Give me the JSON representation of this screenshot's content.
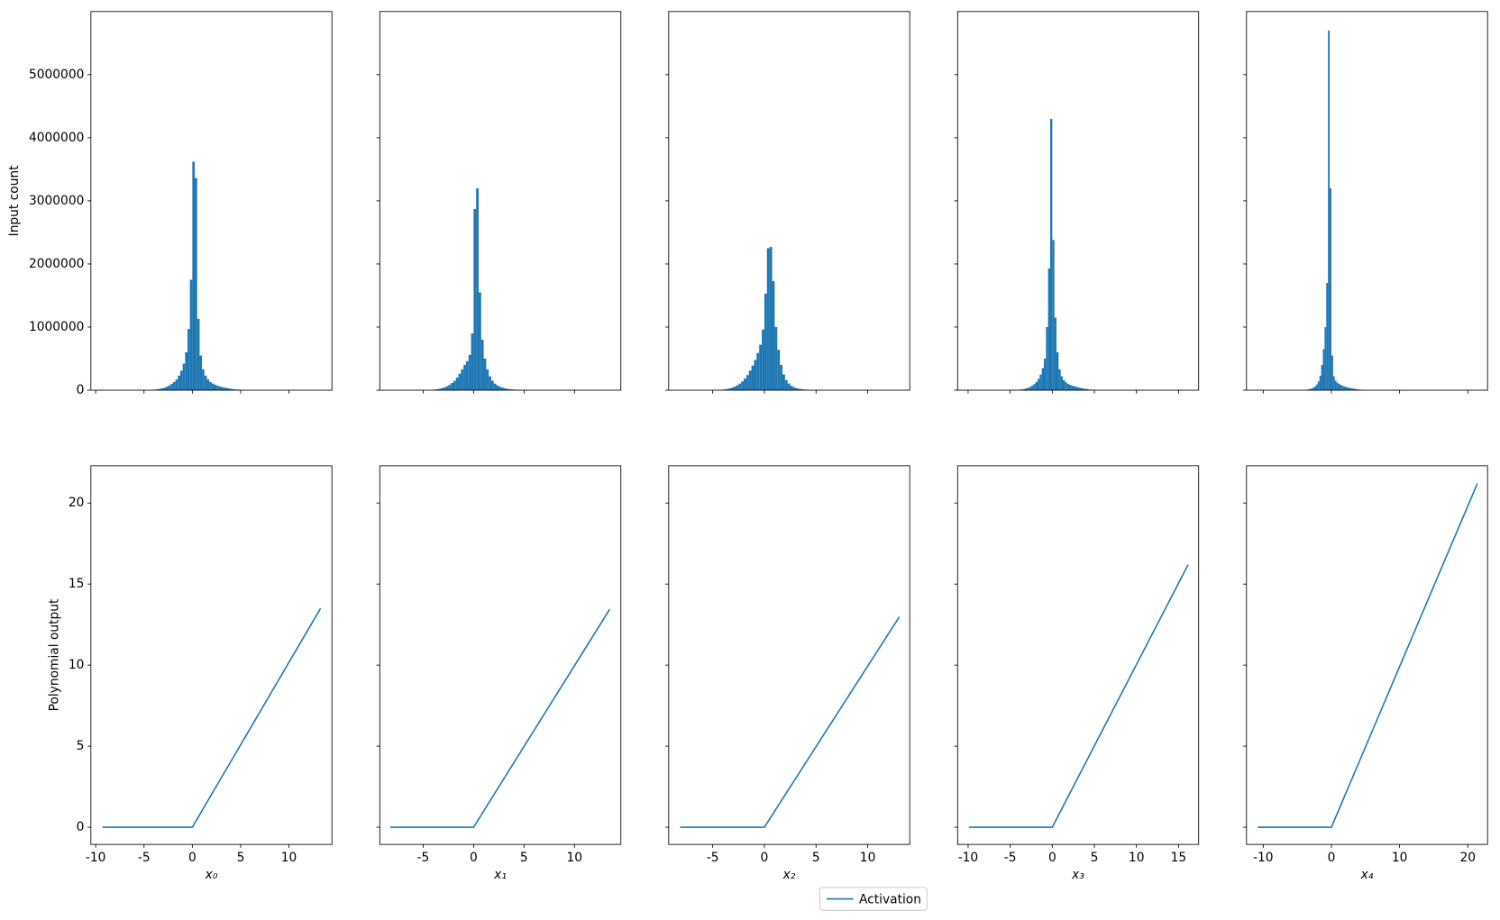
{
  "chart_data": [
    {
      "type": "histogram",
      "ylabel": "Input count",
      "color": "#1f77b4",
      "bins": [
        -4,
        -3.75,
        -3.5,
        -3.25,
        -3,
        -2.75,
        -2.5,
        -2.25,
        -2,
        -1.75,
        -1.5,
        -1.25,
        -1,
        -0.75,
        -0.5,
        -0.25,
        0,
        0.25,
        0.5,
        0.75,
        1,
        1.25,
        1.5,
        1.75,
        2,
        2.25,
        2.5,
        2.75,
        3,
        3.25,
        3.5,
        3.75,
        4,
        4.25,
        4.5,
        4.75,
        5
      ],
      "values": [
        10000,
        15000,
        20000,
        30000,
        40000,
        55000,
        75000,
        100000,
        130000,
        170000,
        230000,
        310000,
        420000,
        600000,
        970000,
        1750000,
        3620000,
        3360000,
        1130000,
        550000,
        330000,
        230000,
        170000,
        130000,
        105000,
        85000,
        70000,
        58000,
        48000,
        40000,
        32000,
        25000,
        19000,
        14000,
        10000,
        7000
      ],
      "xlim": [
        -10.5,
        14.45
      ],
      "xticks": [
        -10,
        -5,
        0,
        5,
        10
      ],
      "xticklabels": false,
      "ylim": [
        0,
        6000000
      ],
      "yticks": [
        0,
        1000000,
        2000000,
        3000000,
        4000000,
        5000000
      ]
    },
    {
      "type": "histogram",
      "color": "#1f77b4",
      "bins": [
        -4,
        -3.75,
        -3.5,
        -3.25,
        -3,
        -2.75,
        -2.5,
        -2.25,
        -2,
        -1.75,
        -1.5,
        -1.25,
        -1,
        -0.75,
        -0.5,
        -0.25,
        0,
        0.25,
        0.5,
        0.75,
        1,
        1.25,
        1.5,
        1.75,
        2,
        2.25,
        2.5,
        2.75,
        3,
        3.25,
        3.5,
        3.75,
        4,
        4.25,
        4.5,
        4.75,
        5
      ],
      "values": [
        10000,
        15000,
        22000,
        32000,
        45000,
        62000,
        85000,
        115000,
        150000,
        200000,
        260000,
        330000,
        400000,
        460000,
        560000,
        900000,
        2870000,
        3200000,
        1550000,
        800000,
        500000,
        330000,
        220000,
        150000,
        105000,
        75000,
        55000,
        40000,
        30000,
        22000,
        16000,
        12000,
        9000,
        6000,
        4000,
        3000
      ],
      "xlim": [
        -9.3,
        14.6
      ],
      "xticks": [
        -5,
        0,
        5,
        10
      ],
      "xticklabels": false,
      "ylim": [
        0,
        6000000
      ],
      "yticks": [
        0,
        1000000,
        2000000,
        3000000,
        4000000,
        5000000
      ],
      "yticklabels": false
    },
    {
      "type": "histogram",
      "color": "#1f77b4",
      "bins": [
        -4,
        -3.75,
        -3.5,
        -3.25,
        -3,
        -2.75,
        -2.5,
        -2.25,
        -2,
        -1.75,
        -1.5,
        -1.25,
        -1,
        -0.75,
        -0.5,
        -0.25,
        0,
        0.25,
        0.5,
        0.75,
        1,
        1.25,
        1.5,
        1.75,
        2,
        2.25,
        2.5,
        2.75,
        3,
        3.25,
        3.5,
        3.75,
        4,
        4.25,
        4.5,
        4.75,
        5
      ],
      "values": [
        12000,
        18000,
        27000,
        40000,
        56000,
        78000,
        105000,
        140000,
        185000,
        240000,
        310000,
        390000,
        480000,
        590000,
        720000,
        960000,
        1530000,
        2250000,
        2270000,
        1730000,
        1000000,
        640000,
        400000,
        250000,
        160000,
        105000,
        70000,
        48000,
        33000,
        23000,
        16000,
        11000,
        8000,
        5000,
        3500,
        2500
      ],
      "xlim": [
        -9.26,
        14.07
      ],
      "xticks": [
        -5,
        0,
        5,
        10
      ],
      "xticklabels": false,
      "ylim": [
        0,
        6000000
      ],
      "yticks": [
        0,
        1000000,
        2000000,
        3000000,
        4000000,
        5000000
      ],
      "yticklabels": false
    },
    {
      "type": "histogram",
      "color": "#1f77b4",
      "bins": [
        -4,
        -3.75,
        -3.5,
        -3.25,
        -3,
        -2.75,
        -2.5,
        -2.25,
        -2,
        -1.75,
        -1.5,
        -1.25,
        -1,
        -0.75,
        -0.5,
        -0.25,
        0,
        0.25,
        0.5,
        0.75,
        1,
        1.25,
        1.5,
        1.75,
        2,
        2.25,
        2.5,
        2.75,
        3,
        3.25,
        3.5,
        3.75,
        4,
        4.25,
        4.5,
        4.75,
        5
      ],
      "values": [
        8000,
        12000,
        18000,
        26000,
        38000,
        52000,
        72000,
        98000,
        130000,
        180000,
        250000,
        350000,
        500000,
        1000000,
        1930000,
        4300000,
        2380000,
        1150000,
        600000,
        330000,
        220000,
        160000,
        125000,
        100000,
        85000,
        72000,
        62000,
        52000,
        44000,
        36000,
        29000,
        23000,
        17000,
        12000,
        8000,
        5000
      ],
      "xlim": [
        -11.25,
        17.39
      ],
      "xticks": [
        -10,
        -5,
        0,
        5,
        10,
        15
      ],
      "xticklabels": false,
      "ylim": [
        0,
        6000000
      ],
      "yticks": [
        0,
        1000000,
        2000000,
        3000000,
        4000000,
        5000000
      ],
      "yticklabels": false
    },
    {
      "type": "histogram",
      "color": "#1f77b4",
      "bins": [
        -4,
        -3.75,
        -3.5,
        -3.25,
        -3,
        -2.75,
        -2.5,
        -2.25,
        -2,
        -1.75,
        -1.5,
        -1.25,
        -1,
        -0.75,
        -0.5,
        -0.25,
        0,
        0.25,
        0.5,
        0.75,
        1,
        1.25,
        1.5,
        1.75,
        2,
        2.25,
        2.5,
        2.75,
        3,
        3.25,
        3.5,
        3.75,
        4,
        4.25,
        4.5,
        4.75,
        5
      ],
      "values": [
        5000,
        8000,
        12000,
        18000,
        27000,
        40000,
        60000,
        90000,
        140000,
        230000,
        400000,
        650000,
        1000000,
        1700000,
        5700000,
        3200000,
        550000,
        220000,
        150000,
        120000,
        100000,
        85000,
        72000,
        62000,
        53000,
        45000,
        38000,
        32000,
        27000,
        22000,
        18000,
        14000,
        11000,
        8000,
        6000,
        4000
      ],
      "xlim": [
        -12.45,
        22.9
      ],
      "xticks": [
        -10,
        0,
        10,
        20
      ],
      "xticklabels": false,
      "ylim": [
        0,
        6000000
      ],
      "yticks": [
        0,
        1000000,
        2000000,
        3000000,
        4000000,
        5000000
      ],
      "yticklabels": false
    },
    {
      "type": "line",
      "xlabel": "x₀",
      "ylabel": "Polynomial output",
      "x": [
        -9.3,
        0,
        13.27
      ],
      "series": [
        {
          "name": "Activation",
          "color": "#1f77b4",
          "values": [
            0,
            0,
            13.5
          ]
        }
      ],
      "xlim": [
        -10.5,
        14.45
      ],
      "xticks": [
        -10,
        -5,
        0,
        5,
        10
      ],
      "ylim": [
        -1.06,
        22.3
      ],
      "yticks": [
        0,
        5,
        10,
        15,
        20
      ]
    },
    {
      "type": "line",
      "xlabel": "x₁",
      "x": [
        -8.26,
        0,
        13.5
      ],
      "series": [
        {
          "color": "#1f77b4",
          "values": [
            0,
            0,
            13.45
          ]
        }
      ],
      "xlim": [
        -9.3,
        14.6
      ],
      "xticks": [
        -5,
        0,
        5,
        10
      ],
      "ylim": [
        -1.06,
        22.3
      ],
      "yticks": [
        0,
        5,
        10,
        15,
        20
      ],
      "yticklabels": false
    },
    {
      "type": "line",
      "xlabel": "x₂",
      "x": [
        -8.15,
        0,
        13.06
      ],
      "series": [
        {
          "color": "#1f77b4",
          "values": [
            0,
            0,
            12.98
          ]
        }
      ],
      "xlim": [
        -9.26,
        14.07
      ],
      "xticks": [
        -5,
        0,
        5,
        10
      ],
      "ylim": [
        -1.06,
        22.3
      ],
      "yticks": [
        0,
        5,
        10,
        15,
        20
      ],
      "yticklabels": false
    },
    {
      "type": "line",
      "xlabel": "x₃",
      "x": [
        -9.9,
        0,
        16.14
      ],
      "series": [
        {
          "color": "#1f77b4",
          "values": [
            0,
            0,
            16.2
          ]
        }
      ],
      "xlim": [
        -11.25,
        17.39
      ],
      "xticks": [
        -10,
        -5,
        0,
        5,
        10,
        15
      ],
      "ylim": [
        -1.06,
        22.3
      ],
      "yticks": [
        0,
        5,
        10,
        15,
        20
      ],
      "yticklabels": false
    },
    {
      "type": "line",
      "xlabel": "x₄",
      "x": [
        -10.8,
        0,
        21.4
      ],
      "series": [
        {
          "color": "#1f77b4",
          "values": [
            0,
            0,
            21.2
          ]
        }
      ],
      "xlim": [
        -12.45,
        22.9
      ],
      "xticks": [
        -10,
        0,
        10,
        20
      ],
      "ylim": [
        -1.06,
        22.3
      ],
      "yticks": [
        0,
        5,
        10,
        15,
        20
      ],
      "yticklabels": false
    }
  ]
}
